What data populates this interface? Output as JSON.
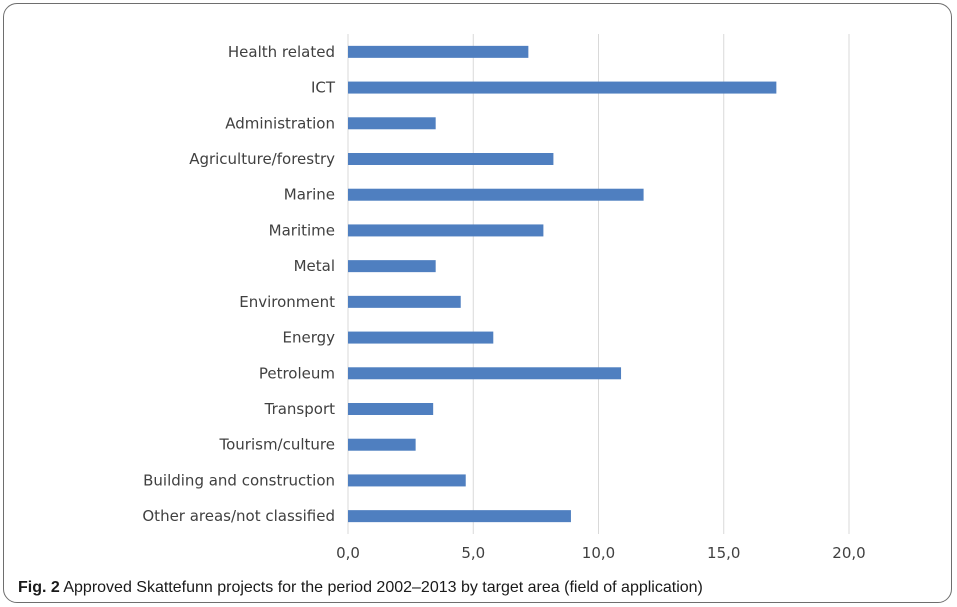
{
  "chart_data": {
    "type": "bar",
    "orientation": "horizontal",
    "categories": [
      "Health related",
      "ICT",
      "Administration",
      "Agriculture/forestry",
      "Marine",
      "Maritime",
      "Metal",
      "Environment",
      "Energy",
      "Petroleum",
      "Transport",
      "Tourism/culture",
      "Building and construction",
      "Other areas/not classified"
    ],
    "values": [
      7.2,
      17.1,
      3.5,
      8.2,
      11.8,
      7.8,
      3.5,
      4.5,
      5.8,
      10.9,
      3.4,
      2.7,
      4.7,
      8.9
    ],
    "xlim": [
      0,
      20
    ],
    "xticks": [
      0,
      5,
      10,
      15,
      20
    ],
    "xtick_labels": [
      "0,0",
      "5,0",
      "10,0",
      "15,0",
      "20,0"
    ],
    "grid": "vertical",
    "bar_color": "#4f7fc0",
    "grid_color": "#d9d9d9",
    "title": "",
    "xlabel": "",
    "ylabel": ""
  },
  "caption": {
    "label": "Fig. 2",
    "text": " Approved Skattefunn projects for the period 2002–2013 by target area (field of application)"
  }
}
